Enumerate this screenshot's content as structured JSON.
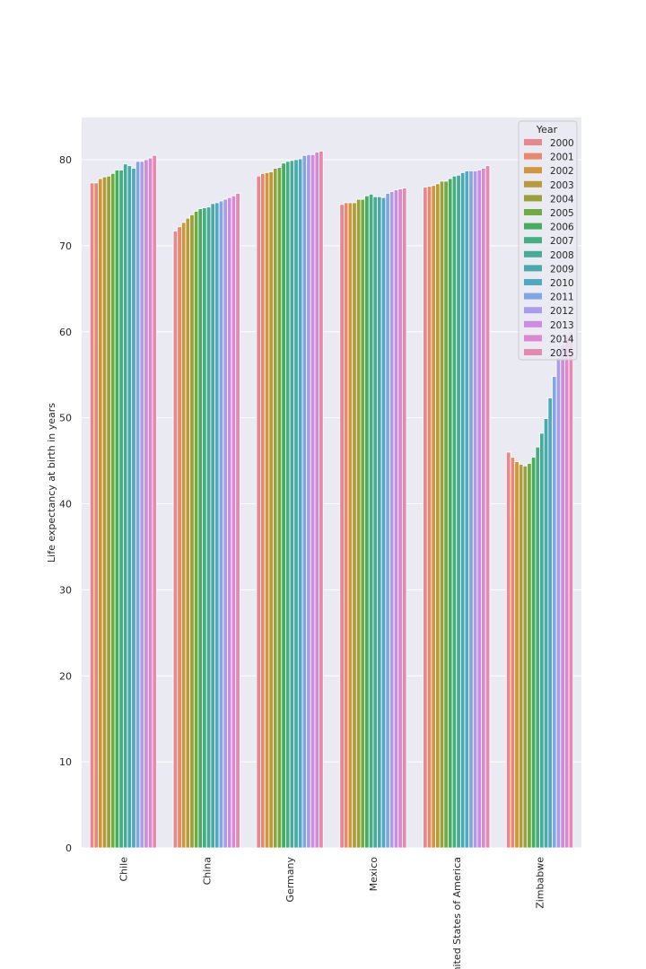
{
  "chart_data": {
    "type": "bar",
    "ylabel": "Life expectancy at birth in years",
    "ylim": [
      0,
      85
    ],
    "yticks": [
      0,
      10,
      20,
      30,
      40,
      50,
      60,
      70,
      80
    ],
    "grid": true,
    "legend_title": "Year",
    "legend_position": "top-right",
    "categories": [
      "Chile",
      "China",
      "Germany",
      "Mexico",
      "United States of America",
      "Zimbabwe"
    ],
    "series": [
      {
        "name": "2000",
        "color": "#e8878e",
        "values": [
          77.3,
          71.7,
          78.1,
          74.8,
          76.8,
          46.0
        ]
      },
      {
        "name": "2001",
        "color": "#e8896f",
        "values": [
          77.3,
          72.2,
          78.4,
          75.0,
          76.9,
          45.4
        ]
      },
      {
        "name": "2002",
        "color": "#d0963c",
        "values": [
          77.8,
          72.7,
          78.5,
          75.0,
          77.0,
          44.9
        ]
      },
      {
        "name": "2003",
        "color": "#b59b3c",
        "values": [
          78.0,
          73.2,
          78.6,
          75.0,
          77.2,
          44.6
        ]
      },
      {
        "name": "2004",
        "color": "#9aa13b",
        "values": [
          78.1,
          73.6,
          79.0,
          75.4,
          77.5,
          44.4
        ]
      },
      {
        "name": "2005",
        "color": "#6eac43",
        "values": [
          78.4,
          74.0,
          79.1,
          75.4,
          77.5,
          44.7
        ]
      },
      {
        "name": "2006",
        "color": "#46ac5e",
        "values": [
          78.8,
          74.3,
          79.6,
          75.8,
          77.8,
          45.4
        ]
      },
      {
        "name": "2007",
        "color": "#45ae83",
        "values": [
          78.8,
          74.4,
          79.8,
          76.0,
          78.1,
          46.6
        ]
      },
      {
        "name": "2008",
        "color": "#48ab98",
        "values": [
          79.5,
          74.5,
          79.9,
          75.7,
          78.2,
          48.2
        ]
      },
      {
        "name": "2009",
        "color": "#4aaaab",
        "values": [
          79.3,
          74.9,
          80.0,
          75.7,
          78.5,
          49.9
        ]
      },
      {
        "name": "2010",
        "color": "#50a8c2",
        "values": [
          79.0,
          75.0,
          80.1,
          75.6,
          78.7,
          52.3
        ]
      },
      {
        "name": "2011",
        "color": "#81a6e2",
        "values": [
          79.8,
          75.2,
          80.5,
          76.1,
          78.7,
          54.8
        ]
      },
      {
        "name": "2012",
        "color": "#ab9ce8",
        "values": [
          79.8,
          75.4,
          80.6,
          76.3,
          78.7,
          57.0
        ]
      },
      {
        "name": "2013",
        "color": "#cb8ce2",
        "values": [
          80.0,
          75.6,
          80.6,
          76.5,
          78.8,
          58.5
        ]
      },
      {
        "name": "2014",
        "color": "#dc88d0",
        "values": [
          80.2,
          75.8,
          80.9,
          76.6,
          79.0,
          59.5
        ]
      },
      {
        "name": "2015",
        "color": "#e48aaf",
        "values": [
          80.5,
          76.1,
          81.0,
          76.7,
          79.3,
          60.0
        ]
      }
    ]
  }
}
